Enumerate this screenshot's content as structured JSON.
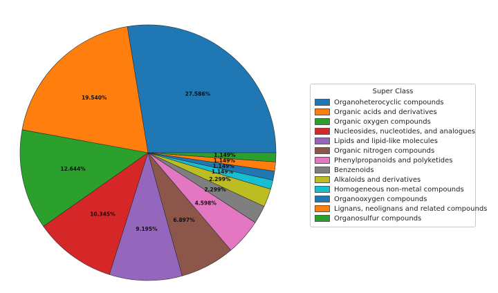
{
  "chart_data": {
    "type": "pie",
    "legend_title": "Super Class",
    "legend_position": "right",
    "start_angle_deg": 0,
    "direction": "counterclockwise",
    "slices": [
      {
        "label": "Organoheterocyclic compounds",
        "value": 27.586,
        "pct_label": "27.586%",
        "color": "#1f77b4"
      },
      {
        "label": "Organic acids and derivatives",
        "value": 19.54,
        "pct_label": "19.540%",
        "color": "#ff7f0e"
      },
      {
        "label": "Organic oxygen compounds",
        "value": 12.644,
        "pct_label": "12.644%",
        "color": "#2ca02c"
      },
      {
        "label": "Nucleosides, nucleotides, and analogues",
        "value": 10.345,
        "pct_label": "10.345%",
        "color": "#d62728"
      },
      {
        "label": "Lipids and lipid-like molecules",
        "value": 9.195,
        "pct_label": "9.195%",
        "color": "#9467bd"
      },
      {
        "label": "Organic nitrogen compounds",
        "value": 6.897,
        "pct_label": "6.897%",
        "color": "#8c564b"
      },
      {
        "label": "Phenylpropanoids and polyketides",
        "value": 4.598,
        "pct_label": "4.598%",
        "color": "#e377c2"
      },
      {
        "label": "Benzenoids",
        "value": 2.299,
        "pct_label": "2.299%",
        "color": "#7f7f7f"
      },
      {
        "label": "Alkaloids and derivatives",
        "value": 2.299,
        "pct_label": "2.299%",
        "color": "#bcbd22"
      },
      {
        "label": "Homogeneous non-metal compounds",
        "value": 1.149,
        "pct_label": "1.149%",
        "color": "#17becf"
      },
      {
        "label": "Organooxygen compounds",
        "value": 1.149,
        "pct_label": "1.149%",
        "color": "#1f77b4"
      },
      {
        "label": "Lignans, neolignans and related compounds",
        "value": 1.149,
        "pct_label": "1.149%",
        "color": "#ff7f0e"
      },
      {
        "label": "Organosulfur compounds",
        "value": 1.149,
        "pct_label": "1.149%",
        "color": "#2ca02c"
      }
    ]
  }
}
